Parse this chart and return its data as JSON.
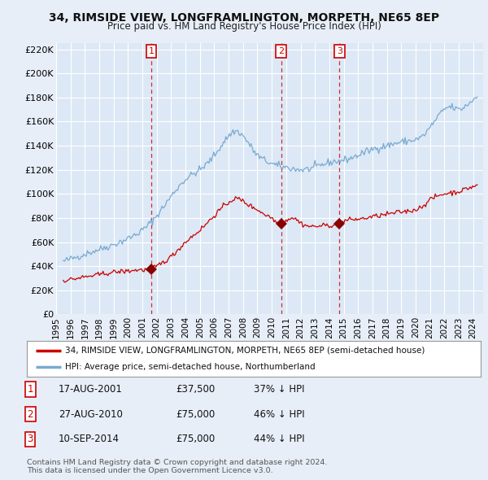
{
  "title": "34, RIMSIDE VIEW, LONGFRAMLINGTON, MORPETH, NE65 8EP",
  "subtitle": "Price paid vs. HM Land Registry's House Price Index (HPI)",
  "ylabel_ticks": [
    "£0",
    "£20K",
    "£40K",
    "£60K",
    "£80K",
    "£100K",
    "£120K",
    "£140K",
    "£160K",
    "£180K",
    "£200K",
    "£220K"
  ],
  "ytick_values": [
    0,
    20000,
    40000,
    60000,
    80000,
    100000,
    120000,
    140000,
    160000,
    180000,
    200000,
    220000
  ],
  "ylim": [
    0,
    225000
  ],
  "xlim_start": 1995.3,
  "xlim_end": 2024.7,
  "background_color": "#e8eef8",
  "plot_background": "#dce8f5",
  "grid_color": "#ffffff",
  "red_line_color": "#cc0000",
  "blue_line_color": "#7aaad0",
  "transaction_marker_color": "#880000",
  "vline_color": "#cc0000",
  "transactions": [
    {
      "year": 2001.63,
      "price": 37500,
      "label": "1"
    },
    {
      "year": 2010.66,
      "price": 75000,
      "label": "2"
    },
    {
      "year": 2014.7,
      "price": 75000,
      "label": "3"
    }
  ],
  "legend_entries": [
    "34, RIMSIDE VIEW, LONGFRAMLINGTON, MORPETH, NE65 8EP (semi-detached house)",
    "HPI: Average price, semi-detached house, Northumberland"
  ],
  "table_rows": [
    {
      "num": "1",
      "date": "17-AUG-2001",
      "price": "£37,500",
      "note": "37% ↓ HPI"
    },
    {
      "num": "2",
      "date": "27-AUG-2010",
      "price": "£75,000",
      "note": "46% ↓ HPI"
    },
    {
      "num": "3",
      "date": "10-SEP-2014",
      "price": "£75,000",
      "note": "44% ↓ HPI"
    }
  ],
  "footer": "Contains HM Land Registry data © Crown copyright and database right 2024.\nThis data is licensed under the Open Government Licence v3.0.",
  "xtick_years": [
    1995,
    1996,
    1997,
    1998,
    1999,
    2000,
    2001,
    2002,
    2003,
    2004,
    2005,
    2006,
    2007,
    2008,
    2009,
    2010,
    2011,
    2012,
    2013,
    2014,
    2015,
    2016,
    2017,
    2018,
    2019,
    2020,
    2021,
    2022,
    2023,
    2024
  ]
}
